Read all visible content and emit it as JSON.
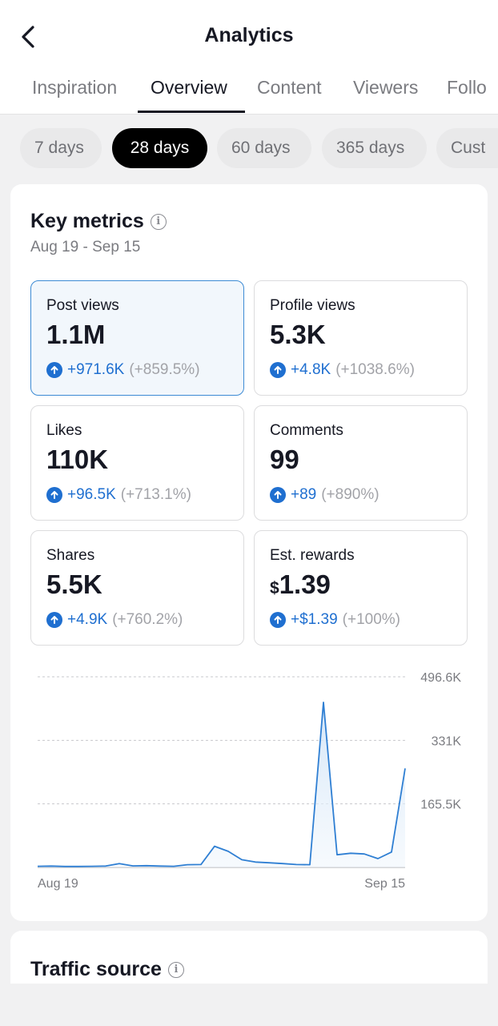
{
  "header": {
    "title": "Analytics",
    "back_icon": "chevron-left-icon"
  },
  "tabs": [
    {
      "label": "Inspiration",
      "active": false
    },
    {
      "label": "Overview",
      "active": true
    },
    {
      "label": "Content",
      "active": false
    },
    {
      "label": "Viewers",
      "active": false
    },
    {
      "label": "Follo",
      "active": false
    }
  ],
  "ranges": [
    {
      "label": "7 days",
      "active": false
    },
    {
      "label": "28 days",
      "active": true
    },
    {
      "label": "60 days",
      "active": false
    },
    {
      "label": "365 days",
      "active": false
    },
    {
      "label": "Cust",
      "active": false
    }
  ],
  "key_metrics": {
    "title": "Key metrics",
    "date_range": "Aug 19 - Sep 15",
    "metrics": [
      {
        "label": "Post views",
        "value": "1.1M",
        "delta": "+971.6K",
        "pct": "(+859.5%)",
        "selected": true
      },
      {
        "label": "Profile views",
        "value": "5.3K",
        "delta": "+4.8K",
        "pct": "(+1038.6%)",
        "selected": false
      },
      {
        "label": "Likes",
        "value": "110K",
        "delta": "+96.5K",
        "pct": "(+713.1%)",
        "selected": false
      },
      {
        "label": "Comments",
        "value": "99",
        "delta": "+89",
        "pct": "(+890%)",
        "selected": false
      },
      {
        "label": "Shares",
        "value": "5.5K",
        "delta": "+4.9K",
        "pct": "(+760.2%)",
        "selected": false
      },
      {
        "label": "Est. rewards",
        "currency": "$",
        "value": "1.39",
        "delta": "+$1.39",
        "pct": "(+100%)",
        "selected": false
      }
    ]
  },
  "chart_data": {
    "type": "area",
    "x_start_label": "Aug 19",
    "x_end_label": "Sep 15",
    "y_ticks": [
      {
        "value": 496600,
        "label": "496.6K"
      },
      {
        "value": 331000,
        "label": "331K"
      },
      {
        "value": 165500,
        "label": "165.5K"
      }
    ],
    "ylim": [
      0,
      496600
    ],
    "grid": true,
    "color": "#2f7fd3",
    "values": [
      3000,
      3500,
      2500,
      2500,
      3000,
      3500,
      10000,
      4000,
      4500,
      3500,
      3000,
      7000,
      7500,
      55000,
      42000,
      20000,
      14000,
      12000,
      10000,
      7500,
      7000,
      430000,
      33000,
      37000,
      35000,
      23000,
      40000,
      258000
    ]
  },
  "traffic_source": {
    "title": "Traffic source"
  },
  "colors": {
    "accent_blue": "#1f6fd0",
    "selected_border": "#3d8bd4",
    "text_primary": "#161823",
    "text_secondary": "#7a7b80"
  }
}
